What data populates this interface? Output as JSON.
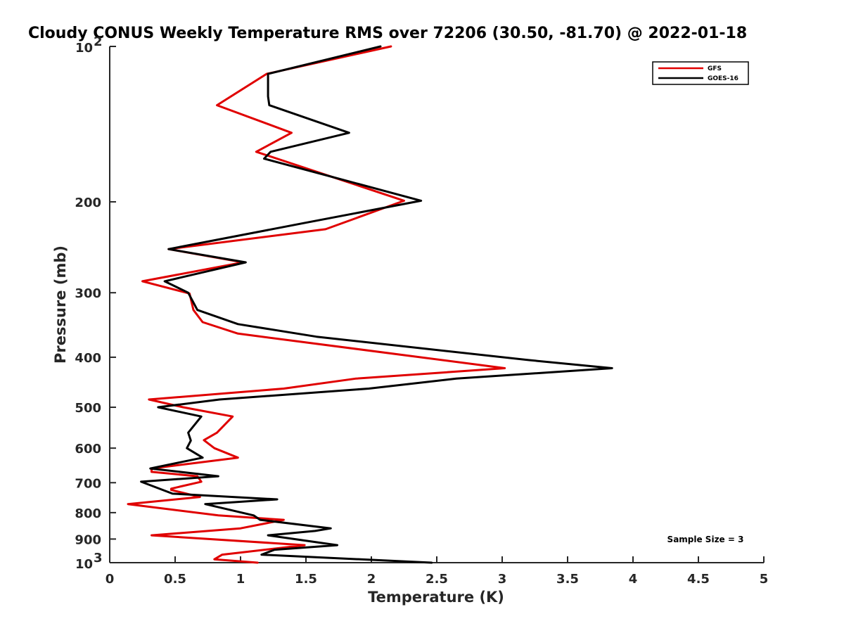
{
  "chart_data": {
    "type": "line",
    "title": "Cloudy CONUS Weekly Temperature RMS over 72206 (30.50, -81.70) @ 2022-01-18",
    "xlabel": "Temperature (K)",
    "ylabel": "Pressure (mb)",
    "xlim": [
      0,
      5
    ],
    "ylim": [
      1000,
      100
    ],
    "yscale": "log",
    "x_ticks": [
      "0",
      "0.5",
      "1",
      "1.5",
      "2",
      "2.5",
      "3",
      "3.5",
      "4",
      "4.5",
      "5"
    ],
    "y_ticks": [
      {
        "value": 100,
        "base": "10",
        "exp": "2"
      },
      {
        "value": 200,
        "label": "200"
      },
      {
        "value": 300,
        "label": "300"
      },
      {
        "value": 400,
        "label": "400"
      },
      {
        "value": 500,
        "label": "500"
      },
      {
        "value": 600,
        "label": "600"
      },
      {
        "value": 700,
        "label": "700"
      },
      {
        "value": 800,
        "label": "800"
      },
      {
        "value": 900,
        "label": "900"
      },
      {
        "value": 1000,
        "base": "10",
        "exp": "3"
      }
    ],
    "legend_position": "top-right",
    "annotation": "Sample Size = 3",
    "series": [
      {
        "name": "GFS",
        "color": "#e00000",
        "points": [
          [
            2.15,
            100
          ],
          [
            1.2,
            113
          ],
          [
            0.82,
            130
          ],
          [
            1.39,
            147
          ],
          [
            1.12,
            160
          ],
          [
            2.25,
            199
          ],
          [
            1.65,
            226
          ],
          [
            0.45,
            247
          ],
          [
            1.02,
            262
          ],
          [
            0.25,
            285
          ],
          [
            0.61,
            301
          ],
          [
            0.64,
            324
          ],
          [
            0.71,
            342
          ],
          [
            0.98,
            360
          ],
          [
            3.02,
            420
          ],
          [
            1.88,
            440
          ],
          [
            1.33,
            460
          ],
          [
            0.3,
            483
          ],
          [
            0.56,
            500
          ],
          [
            0.94,
            521
          ],
          [
            0.82,
            560
          ],
          [
            0.72,
            579
          ],
          [
            0.8,
            600
          ],
          [
            0.98,
            626
          ],
          [
            0.32,
            657
          ],
          [
            0.32,
            667
          ],
          [
            0.67,
            680
          ],
          [
            0.7,
            697
          ],
          [
            0.47,
            719
          ],
          [
            0.47,
            723
          ],
          [
            0.69,
            746
          ],
          [
            0.14,
            770
          ],
          [
            0.83,
            810
          ],
          [
            1.33,
            826
          ],
          [
            1.0,
            858
          ],
          [
            0.32,
            885
          ],
          [
            1.49,
            925
          ],
          [
            0.86,
            965
          ],
          [
            0.8,
            985
          ],
          [
            1.13,
            1000
          ]
        ]
      },
      {
        "name": "GOES-16",
        "color": "#000000",
        "points": [
          [
            2.07,
            100
          ],
          [
            1.21,
            113
          ],
          [
            1.21,
            125
          ],
          [
            1.22,
            130
          ],
          [
            1.83,
            147
          ],
          [
            1.23,
            160
          ],
          [
            1.18,
            165
          ],
          [
            2.38,
            199
          ],
          [
            1.48,
            220
          ],
          [
            0.45,
            247
          ],
          [
            1.04,
            262
          ],
          [
            0.42,
            285
          ],
          [
            0.6,
            300
          ],
          [
            0.67,
            324
          ],
          [
            0.98,
            345
          ],
          [
            1.58,
            365
          ],
          [
            3.2,
            405
          ],
          [
            3.84,
            420
          ],
          [
            2.65,
            440
          ],
          [
            1.98,
            460
          ],
          [
            0.84,
            483
          ],
          [
            0.37,
            500
          ],
          [
            0.7,
            521
          ],
          [
            0.6,
            560
          ],
          [
            0.62,
            580
          ],
          [
            0.59,
            600
          ],
          [
            0.71,
            626
          ],
          [
            0.31,
            657
          ],
          [
            0.83,
            680
          ],
          [
            0.24,
            697
          ],
          [
            0.48,
            735
          ],
          [
            1.28,
            754
          ],
          [
            0.73,
            770
          ],
          [
            1.1,
            810
          ],
          [
            1.15,
            826
          ],
          [
            1.69,
            858
          ],
          [
            1.57,
            868
          ],
          [
            1.21,
            885
          ],
          [
            1.74,
            925
          ],
          [
            1.26,
            944
          ],
          [
            1.16,
            965
          ],
          [
            2.46,
            1000
          ]
        ]
      }
    ]
  }
}
